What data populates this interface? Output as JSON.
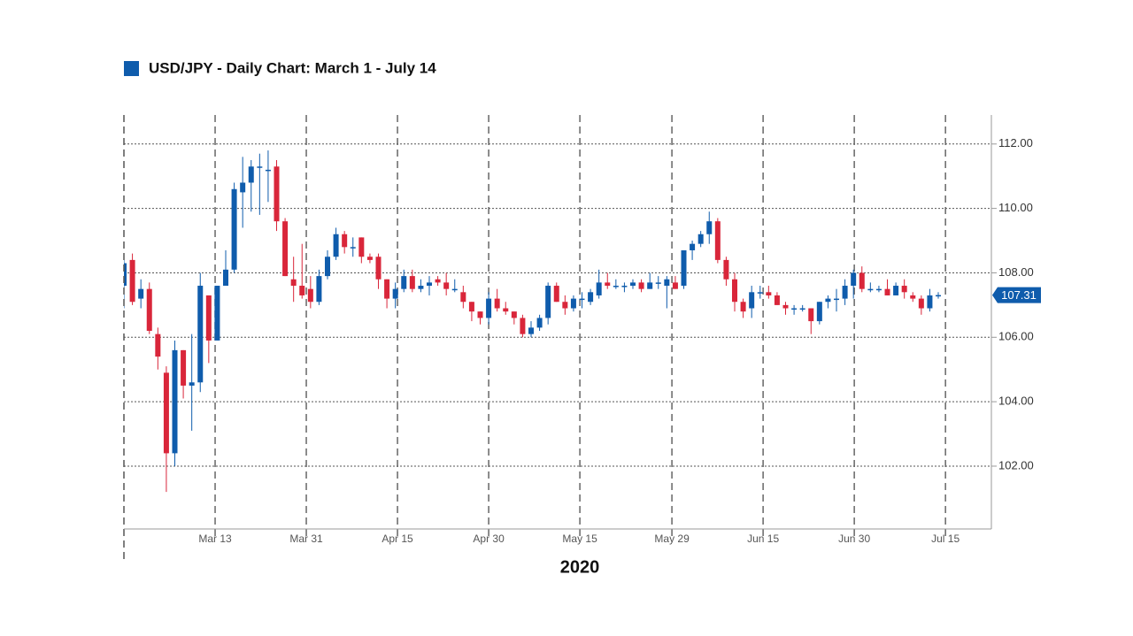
{
  "chart_data": {
    "type": "candlestick",
    "title": "USD/JPY - Daily Chart: March 1 - July 14",
    "xlabel": "2020",
    "legend_color": "#0f5cac",
    "up_color": "#0f5cac",
    "down_color": "#d9263a",
    "x": [
      "Mar 2",
      "Mar 3",
      "Mar 4",
      "Mar 5",
      "Mar 6",
      "Mar 9",
      "Mar 10",
      "Mar 11",
      "Mar 12",
      "Mar 13",
      "Mar 16",
      "Mar 17",
      "Mar 18",
      "Mar 19",
      "Mar 20",
      "Mar 23",
      "Mar 24",
      "Mar 25",
      "Mar 26",
      "Mar 27",
      "Mar 30",
      "Mar 31",
      "Apr 1",
      "Apr 2",
      "Apr 3",
      "Apr 6",
      "Apr 7",
      "Apr 8",
      "Apr 9",
      "Apr 10",
      "Apr 13",
      "Apr 14",
      "Apr 15",
      "Apr 16",
      "Apr 17",
      "Apr 20",
      "Apr 21",
      "Apr 22",
      "Apr 23",
      "Apr 24",
      "Apr 27",
      "Apr 28",
      "Apr 29",
      "Apr 30",
      "May 1",
      "May 4",
      "May 5",
      "May 6",
      "May 7",
      "May 8",
      "May 11",
      "May 12",
      "May 13",
      "May 14",
      "May 15",
      "May 18",
      "May 19",
      "May 20",
      "May 21",
      "May 22",
      "May 25",
      "May 26",
      "May 27",
      "May 28",
      "May 29",
      "Jun 1",
      "Jun 2",
      "Jun 3",
      "Jun 4",
      "Jun 5",
      "Jun 8",
      "Jun 9",
      "Jun 10",
      "Jun 11",
      "Jun 12",
      "Jun 15",
      "Jun 16",
      "Jun 17",
      "Jun 18",
      "Jun 19",
      "Jun 22",
      "Jun 23",
      "Jun 24",
      "Jun 25",
      "Jun 26",
      "Jun 29",
      "Jun 30",
      "Jul 1",
      "Jul 2",
      "Jul 3",
      "Jul 6",
      "Jul 7",
      "Jul 8",
      "Jul 9",
      "Jul 10",
      "Jul 13",
      "Jul 14"
    ],
    "open": [
      107.6,
      108.4,
      107.2,
      107.5,
      106.1,
      104.9,
      102.4,
      105.6,
      104.5,
      104.6,
      107.3,
      105.9,
      107.6,
      108.1,
      110.5,
      110.8,
      111.3,
      111.2,
      111.3,
      109.6,
      107.8,
      107.6,
      107.5,
      107.1,
      107.9,
      108.5,
      109.2,
      108.8,
      109.1,
      108.5,
      108.5,
      107.8,
      107.2,
      107.5,
      107.9,
      107.5,
      107.6,
      107.8,
      107.7,
      107.5,
      107.4,
      107.1,
      106.8,
      106.6,
      107.2,
      106.9,
      106.8,
      106.6,
      106.1,
      106.3,
      106.6,
      107.6,
      107.1,
      106.9,
      107.2,
      107.1,
      107.3,
      107.7,
      107.6,
      107.6,
      107.6,
      107.7,
      107.5,
      107.7,
      107.6,
      107.7,
      107.6,
      108.7,
      108.9,
      109.2,
      109.6,
      108.4,
      107.8,
      107.1,
      106.9,
      107.4,
      107.4,
      107.3,
      107.0,
      106.9,
      106.9,
      106.9,
      106.5,
      107.1,
      107.2,
      107.2,
      107.6,
      108.0,
      107.5,
      107.5,
      107.5,
      107.3,
      107.6,
      107.3,
      107.2,
      106.9,
      107.3
    ],
    "high": [
      108.5,
      108.6,
      107.8,
      107.7,
      106.3,
      105.1,
      105.9,
      105.6,
      106.1,
      108.0,
      107.3,
      107.6,
      108.7,
      110.8,
      111.6,
      111.5,
      111.7,
      111.8,
      111.5,
      109.7,
      108.5,
      108.9,
      107.9,
      108.1,
      108.7,
      109.4,
      109.3,
      109.1,
      109.1,
      108.6,
      108.6,
      107.8,
      107.7,
      108.1,
      108.1,
      107.8,
      107.9,
      107.9,
      108.0,
      107.8,
      107.6,
      107.1,
      106.8,
      107.4,
      107.5,
      107.1,
      106.8,
      106.7,
      106.5,
      106.7,
      107.7,
      107.7,
      107.3,
      107.3,
      107.4,
      107.5,
      108.1,
      108.0,
      107.8,
      107.7,
      107.8,
      107.8,
      108.0,
      107.9,
      107.9,
      107.9,
      108.7,
      109.0,
      109.3,
      109.9,
      109.7,
      108.5,
      108.0,
      107.2,
      107.6,
      107.6,
      107.6,
      107.4,
      107.1,
      107.0,
      107.0,
      106.9,
      107.1,
      107.3,
      107.5,
      107.8,
      108.1,
      108.2,
      107.7,
      107.6,
      107.8,
      107.7,
      107.8,
      107.4,
      107.3,
      107.5,
      107.4
    ],
    "low": [
      106.9,
      107.0,
      106.9,
      106.1,
      105.0,
      101.2,
      102.0,
      104.1,
      103.1,
      104.3,
      105.2,
      105.9,
      107.7,
      108.0,
      109.4,
      109.9,
      109.8,
      110.2,
      109.3,
      107.9,
      107.1,
      107.2,
      106.9,
      107.0,
      107.8,
      108.4,
      108.6,
      108.5,
      108.3,
      108.3,
      107.5,
      106.9,
      106.9,
      107.4,
      107.4,
      107.4,
      107.3,
      107.6,
      107.3,
      107.4,
      106.9,
      106.5,
      106.4,
      106.4,
      106.8,
      106.7,
      106.4,
      106.0,
      106.0,
      106.2,
      106.4,
      107.1,
      106.7,
      106.8,
      106.9,
      107.0,
      107.2,
      107.5,
      107.5,
      107.4,
      107.5,
      107.4,
      107.5,
      107.5,
      106.9,
      107.5,
      107.5,
      108.4,
      108.8,
      108.9,
      108.3,
      107.6,
      106.8,
      106.6,
      106.6,
      107.2,
      107.2,
      107.0,
      106.7,
      106.7,
      106.8,
      106.1,
      106.4,
      106.9,
      106.8,
      107.0,
      107.2,
      107.4,
      107.4,
      107.4,
      107.3,
      107.3,
      107.2,
      107.1,
      106.7,
      106.8,
      107.2
    ],
    "close": [
      108.3,
      107.1,
      107.5,
      106.2,
      105.4,
      102.4,
      105.6,
      104.5,
      104.6,
      107.6,
      105.9,
      107.6,
      108.1,
      110.6,
      110.8,
      111.3,
      111.3,
      111.2,
      109.6,
      107.9,
      107.6,
      107.3,
      107.1,
      107.9,
      108.5,
      109.2,
      108.8,
      108.8,
      108.5,
      108.4,
      107.8,
      107.2,
      107.5,
      107.9,
      107.5,
      107.6,
      107.7,
      107.7,
      107.5,
      107.5,
      107.1,
      106.8,
      106.6,
      107.2,
      106.9,
      106.8,
      106.6,
      106.1,
      106.3,
      106.6,
      107.6,
      107.1,
      106.9,
      107.2,
      107.2,
      107.4,
      107.7,
      107.6,
      107.6,
      107.6,
      107.7,
      107.5,
      107.7,
      107.7,
      107.8,
      107.5,
      108.7,
      108.9,
      109.2,
      109.6,
      108.4,
      107.8,
      107.1,
      106.8,
      107.4,
      107.4,
      107.3,
      107.0,
      106.9,
      106.9,
      106.9,
      106.5,
      107.1,
      107.2,
      107.2,
      107.6,
      108.0,
      107.5,
      107.5,
      107.5,
      107.3,
      107.6,
      107.4,
      107.2,
      106.9,
      107.3,
      107.31
    ],
    "xlim": [
      0,
      102.26
    ],
    "xticks": [
      {
        "value": 10.75,
        "label": "Mar 13"
      },
      {
        "value": 21.5,
        "label": "Mar 31"
      },
      {
        "value": 32.25,
        "label": "Apr 15"
      },
      {
        "value": 43.0,
        "label": "Apr 30"
      },
      {
        "value": 53.75,
        "label": "May 15"
      },
      {
        "value": 64.6,
        "label": "May 29"
      },
      {
        "value": 75.35,
        "label": "Jun 15"
      },
      {
        "value": 86.1,
        "label": "Jun 30"
      },
      {
        "value": 96.85,
        "label": "Jul 15"
      }
    ],
    "ylim": [
      100.05,
      112.9
    ],
    "yticks": [
      {
        "value": 102,
        "label": "102.00"
      },
      {
        "value": 104,
        "label": "104.00"
      },
      {
        "value": 106,
        "label": "106.00"
      },
      {
        "value": 108,
        "label": "108.00"
      },
      {
        "value": 110,
        "label": "110.00"
      },
      {
        "value": 112,
        "label": "112.00"
      }
    ],
    "grid": true
  }
}
